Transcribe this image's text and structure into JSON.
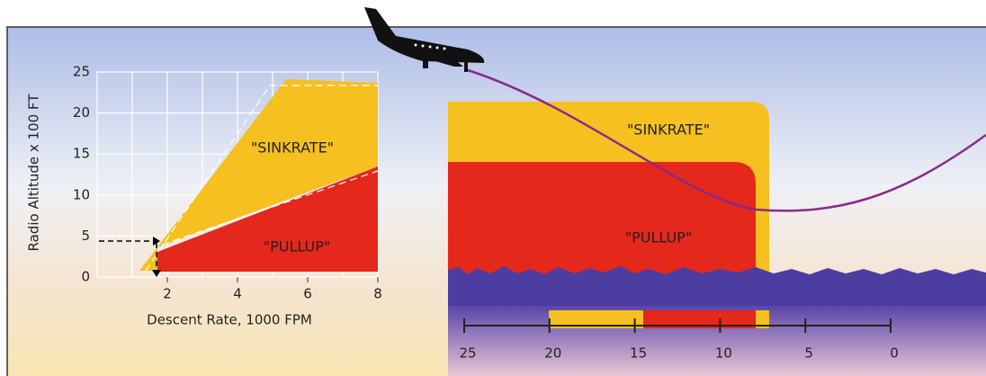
{
  "left_chart": {
    "y_axis_title": "Radio Altitude x 100 FT",
    "x_axis_title": "Descent Rate, 1000 FPM",
    "yticks": [
      0,
      5,
      10,
      15,
      20,
      25
    ],
    "xticks": [
      2,
      4,
      6,
      8
    ],
    "regions": [
      "\"SINKRATE\"",
      "\"PULLUP\""
    ]
  },
  "right_view": {
    "regions": [
      "\"SINKRATE\"",
      "\"PULLUP\""
    ],
    "scale": [
      25,
      20,
      15,
      10,
      5,
      0
    ]
  }
}
